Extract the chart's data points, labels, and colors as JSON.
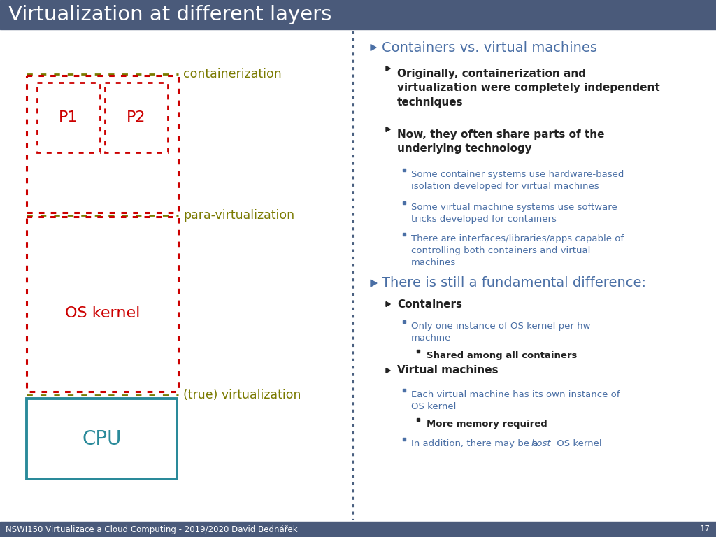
{
  "title": "Virtualization at different layers",
  "title_bg": "#4a5a7a",
  "title_color": "#ffffff",
  "bg_color": "#ffffff",
  "footer_text": "NSWI150 Virtualizace a Cloud Computing - 2019/2020 David Bednářek",
  "footer_page": "17",
  "footer_bg": "#4a5a7a",
  "footer_color": "#ffffff",
  "divider_color": "#4a6080",
  "red_color": "#cc0000",
  "olive_color": "#7a7a00",
  "teal_color": "#2a8a9a",
  "blue_text": "#4a6fa5",
  "dark_text": "#222222"
}
